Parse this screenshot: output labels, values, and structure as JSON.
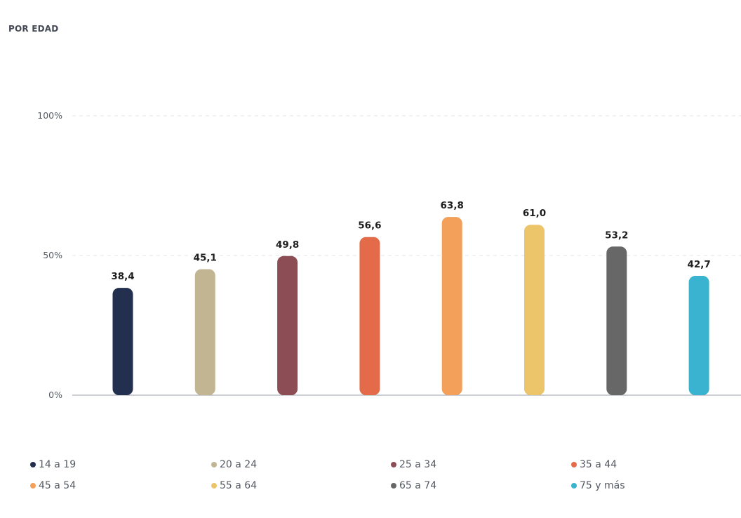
{
  "chart_data": {
    "type": "bar",
    "title": "POR EDAD",
    "categories": [
      "14 a 19",
      "20 a 24",
      "25 a 34",
      "35 a 44",
      "45 a 54",
      "55 a 64",
      "65 a 74",
      "75 y más"
    ],
    "values": [
      38.4,
      45.1,
      49.8,
      56.6,
      63.8,
      61.0,
      53.2,
      42.7
    ],
    "value_labels": [
      "38,4",
      "45,1",
      "49,8",
      "56,6",
      "63,8",
      "61,0",
      "53,2",
      "42,7"
    ],
    "colors": [
      "#232f4e",
      "#c2b592",
      "#8c4d54",
      "#e46b4a",
      "#f2a05a",
      "#ecc469",
      "#676767",
      "#39b3cf"
    ],
    "yticks": [
      "0%",
      "50%",
      "100%"
    ],
    "ylim": [
      0,
      100
    ],
    "grid": true,
    "legend_position": "bottom"
  }
}
